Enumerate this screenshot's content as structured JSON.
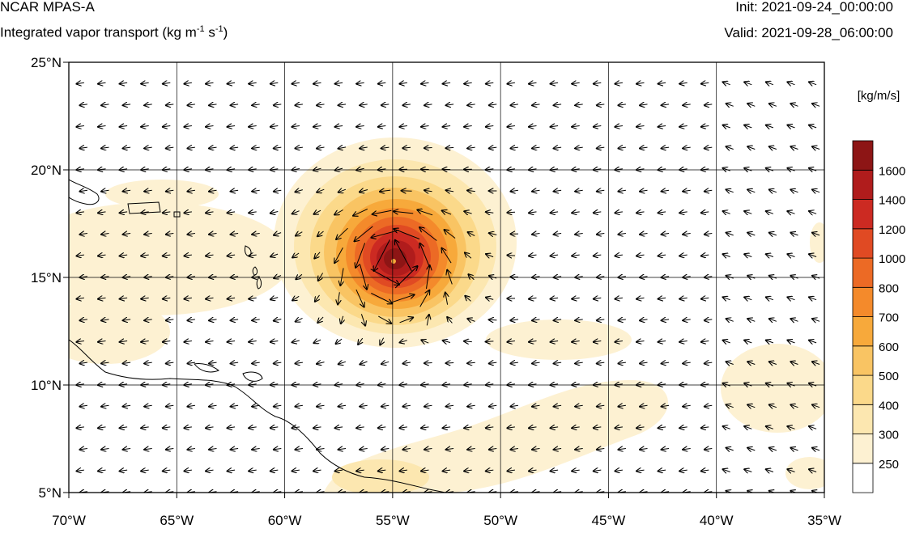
{
  "header": {
    "title": "NCAR MPAS-A",
    "subtitle_main": "Integrated vapor transport (kg m",
    "subtitle_exp1": "-1",
    "subtitle_mid": " s",
    "subtitle_exp2": "-1",
    "subtitle_end": ")",
    "init": "Init: 2021-09-24_00:00:00",
    "valid": "Valid: 2021-09-28_06:00:00"
  },
  "map": {
    "lon_range": [
      -70,
      -35
    ],
    "lat_range": [
      5,
      25
    ],
    "lon_ticks": [
      -70,
      -65,
      -60,
      -55,
      -50,
      -45,
      -40,
      -35
    ],
    "lon_tick_labels": [
      "70°W",
      "65°W",
      "60°W",
      "55°W",
      "50°W",
      "45°W",
      "40°W",
      "35°W"
    ],
    "lat_ticks": [
      5,
      10,
      15,
      20,
      25
    ],
    "lat_tick_labels": [
      "5°N",
      "10°N",
      "15°N",
      "20°N",
      "25°N"
    ],
    "gridlines": true,
    "storm_center": {
      "lon": -55,
      "lat": 15.8
    }
  },
  "colorbar": {
    "units": "[kg/m/s]",
    "levels": [
      "250",
      "300",
      "400",
      "500",
      "600",
      "700",
      "800",
      "1000",
      "1200",
      "1400",
      "1600"
    ],
    "colors": [
      "#ffffff",
      "#fdf1d2",
      "#fce7b0",
      "#fbd98a",
      "#f9c463",
      "#f7a93b",
      "#f48a2b",
      "#ec6a25",
      "#e04a23",
      "#cc2a22",
      "#b01c1c",
      "#8d1515"
    ]
  }
}
